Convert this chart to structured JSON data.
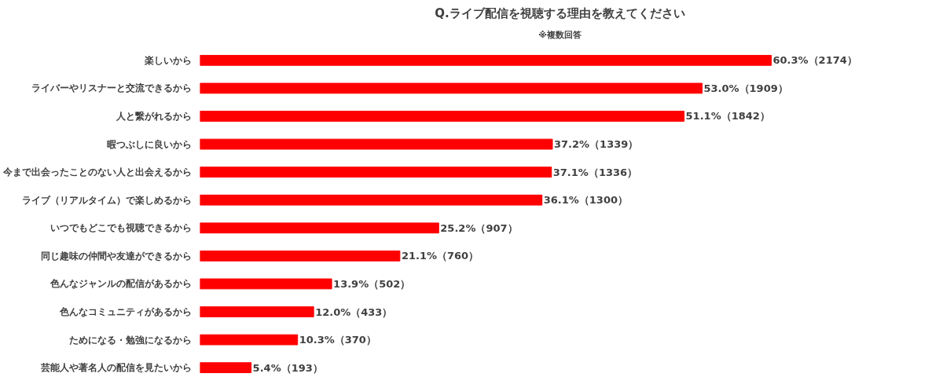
{
  "chart_data": {
    "type": "bar",
    "orientation": "horizontal",
    "title": "Q.ライブ配信を視聴する理由を教えてください",
    "subtitle": "※複数回答",
    "categories": [
      "楽しいから",
      "ライバーやリスナーと交流できるから",
      "人と繋がれるから",
      "暇つぶしに良いから",
      "今まで出会ったことのない人と出会えるから",
      "ライブ（リアルタイム）で楽しめるから",
      "いつでもどこでも視聴できるから",
      "同じ趣味の仲間や友達ができるから",
      "色んなジャンルの配信があるから",
      "色んなコミュニティがあるから",
      "ためになる・勉強になるから",
      "芸能人や著名人の配信を見たいから"
    ],
    "values": [
      60.3,
      53.0,
      51.1,
      37.2,
      37.1,
      36.1,
      25.2,
      21.1,
      13.9,
      12.0,
      10.3,
      5.4
    ],
    "value_labels": [
      "60.3%（2174）",
      "53.0%（1909）",
      "51.1%（1842）",
      "37.2%（1339）",
      "37.1%（1336）",
      "36.1%（1300）",
      "25.2%（907）",
      "21.1%（760）",
      "13.9%（502）",
      "12.0%（433）",
      "10.3%（370）",
      "5.4%（193）"
    ],
    "color": "#ff0000",
    "grid": false
  }
}
